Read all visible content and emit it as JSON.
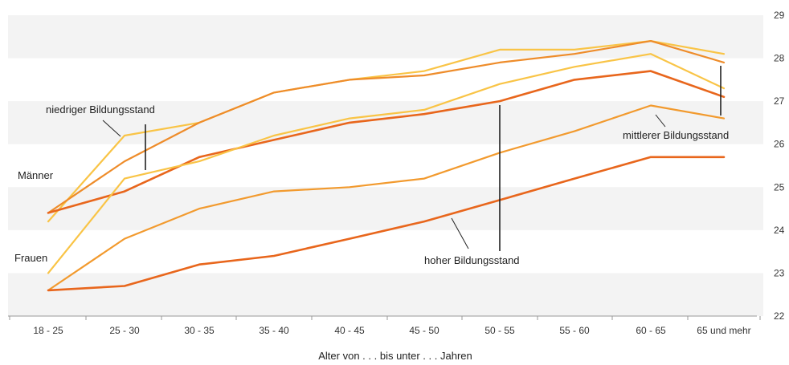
{
  "chart_data": {
    "type": "line",
    "xlabel": "Alter von . . . bis unter . . . Jahren",
    "ylabel": "",
    "ylim": [
      22,
      29
    ],
    "yticks": [
      22,
      23,
      24,
      25,
      26,
      27,
      28,
      29
    ],
    "y_axis_position": "right",
    "grid": "horizontal bands",
    "categories": [
      "18 - 25",
      "25 - 30",
      "30 - 35",
      "35 - 40",
      "40 - 45",
      "45 - 50",
      "50 - 55",
      "55 - 60",
      "60 - 65",
      "65 und mehr"
    ],
    "series": [
      {
        "values": [
          24.2,
          26.2,
          26.5,
          27.2,
          27.5,
          27.7,
          28.2,
          28.2,
          28.4,
          28.1
        ],
        "color": "#F9C446"
      },
      {
        "values": [
          24.4,
          25.6,
          26.5,
          27.2,
          27.5,
          27.6,
          27.9,
          28.1,
          28.4,
          27.9
        ],
        "color": "#EE8C2A"
      },
      {
        "values": [
          24.4,
          24.9,
          25.7,
          26.1,
          26.5,
          26.7,
          27.0,
          27.5,
          27.7,
          27.1
        ],
        "color": "#E8661C"
      },
      {
        "values": [
          23.0,
          25.2,
          25.6,
          26.2,
          26.6,
          26.8,
          27.4,
          27.8,
          28.1,
          27.3
        ],
        "color": "#F9C446"
      },
      {
        "values": [
          22.6,
          23.8,
          24.5,
          24.9,
          25.0,
          25.2,
          25.8,
          26.3,
          26.9,
          26.6
        ],
        "color": "#F29A2E"
      },
      {
        "values": [
          22.6,
          22.7,
          23.2,
          23.4,
          23.8,
          24.2,
          24.7,
          25.2,
          25.7,
          25.7
        ],
        "color": "#E8661C"
      }
    ],
    "annotations": [
      {
        "text": "niedriger Bildungsstand"
      },
      {
        "text": "Männer"
      },
      {
        "text": "Frauen"
      },
      {
        "text": "hoher Bildungsstand"
      },
      {
        "text": "mittlerer Bildungsstand"
      }
    ]
  }
}
